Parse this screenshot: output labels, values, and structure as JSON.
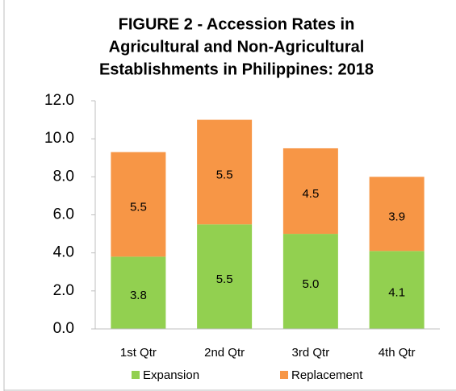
{
  "chart_data": {
    "type": "stacked_bar",
    "title": [
      "FIGURE 2 - Accession Rates in",
      "Agricultural and Non-Agricultural",
      "Establishments in Philippines: 2018"
    ],
    "categories": [
      "1st Qtr",
      "2nd Qtr",
      "3rd Qtr",
      "4th Qtr"
    ],
    "series": [
      {
        "name": "Expansion",
        "color": "#92d050",
        "values": [
          3.8,
          5.5,
          5.0,
          4.1
        ],
        "value_labels": [
          "3.8",
          "5.5",
          "5.0",
          "4.1"
        ]
      },
      {
        "name": "Replacement",
        "color": "#f79646",
        "values": [
          5.5,
          5.5,
          4.5,
          3.9
        ],
        "value_labels": [
          "5.5",
          "5.5",
          "4.5",
          "3.9"
        ]
      }
    ],
    "ylim": [
      0,
      12
    ],
    "yticks": [
      {
        "value": 0,
        "label": "0.0"
      },
      {
        "value": 2,
        "label": "2.0"
      },
      {
        "value": 4,
        "label": "4.0"
      },
      {
        "value": 6,
        "label": "6.0"
      },
      {
        "value": 8,
        "label": "8.0"
      },
      {
        "value": 10,
        "label": "10.0"
      },
      {
        "value": 12,
        "label": "12.0"
      }
    ],
    "legend": "bottom"
  }
}
